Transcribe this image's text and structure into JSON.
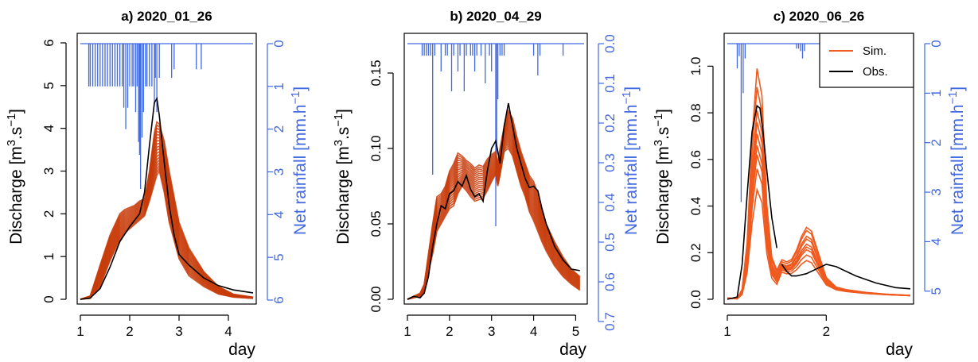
{
  "chart_data": [
    {
      "type": "line",
      "title": "a) 2020_01_26",
      "xlabel": "day",
      "ylabel": "Discharge [m³.s⁻¹]",
      "y2label": "Net rainfall [mm.h⁻¹]",
      "xlim": [
        1,
        4.5
      ],
      "ylim": [
        0,
        6
      ],
      "y2lim": [
        0,
        6
      ],
      "xticks": [
        1,
        2,
        3,
        4
      ],
      "yticks": [
        0,
        1,
        2,
        3,
        4,
        5,
        6
      ],
      "y2ticks": [
        0,
        1,
        2,
        3,
        4,
        5,
        6
      ],
      "sim_color": "#c83c0a",
      "obs": {
        "name": "Obs.",
        "x": [
          1.0,
          1.2,
          1.4,
          1.6,
          1.8,
          2.0,
          2.1,
          2.2,
          2.3,
          2.4,
          2.5,
          2.55,
          2.6,
          2.7,
          2.8,
          2.9,
          3.0,
          3.2,
          3.5,
          3.8,
          4.1,
          4.5
        ],
        "y": [
          0.0,
          0.03,
          0.25,
          0.75,
          1.35,
          1.7,
          1.85,
          2.0,
          2.5,
          3.6,
          4.6,
          4.7,
          4.3,
          3.2,
          2.2,
          1.5,
          1.05,
          0.8,
          0.5,
          0.32,
          0.22,
          0.15
        ]
      },
      "sim_envelope": {
        "x": [
          1.0,
          1.2,
          1.4,
          1.6,
          1.8,
          1.9,
          2.0,
          2.1,
          2.2,
          2.3,
          2.4,
          2.5,
          2.55,
          2.6,
          2.7,
          2.8,
          3.0,
          3.2,
          3.5,
          3.8,
          4.1,
          4.5
        ],
        "low": [
          0.0,
          0.02,
          0.3,
          0.9,
          1.4,
          1.55,
          1.65,
          1.75,
          1.85,
          1.95,
          2.3,
          2.7,
          2.9,
          3.0,
          2.5,
          1.8,
          0.95,
          0.55,
          0.3,
          0.12,
          0.05,
          0.02
        ],
        "high": [
          0.0,
          0.08,
          0.8,
          1.5,
          2.0,
          2.1,
          2.15,
          2.2,
          2.3,
          2.35,
          3.0,
          3.9,
          4.15,
          4.1,
          3.7,
          3.0,
          1.8,
          1.2,
          0.65,
          0.3,
          0.12,
          0.05
        ]
      },
      "rainfall": {
        "baseline_x": [
          1.0,
          4.5
        ],
        "x": [
          1.17,
          1.2,
          1.25,
          1.3,
          1.35,
          1.4,
          1.45,
          1.5,
          1.55,
          1.6,
          1.65,
          1.7,
          1.75,
          1.8,
          1.85,
          1.88,
          1.92,
          1.96,
          2.0,
          2.05,
          2.08,
          2.12,
          2.15,
          2.18,
          2.2,
          2.22,
          2.25,
          2.28,
          2.32,
          2.35,
          2.4,
          2.45,
          2.5,
          2.52,
          2.55,
          2.6,
          2.85,
          2.9,
          3.35,
          3.45
        ],
        "y": [
          1.0,
          1.0,
          1.0,
          1.0,
          1.0,
          1.0,
          1.0,
          1.0,
          1.0,
          1.0,
          1.0,
          1.0,
          1.0,
          1.0,
          1.0,
          1.5,
          2.0,
          1.5,
          1.0,
          1.0,
          1.0,
          1.6,
          1.0,
          2.3,
          2.6,
          3.4,
          2.2,
          1.6,
          1.0,
          1.0,
          1.0,
          1.0,
          1.4,
          0.8,
          1.6,
          0.8,
          0.8,
          0.6,
          0.6,
          0.6
        ]
      }
    },
    {
      "type": "line",
      "title": "b) 2020_04_29",
      "xlabel": "day",
      "ylabel": "Discharge [m³.s⁻¹]",
      "y2label": "Net rainfall [mm.h⁻¹]",
      "xlim": [
        1,
        5.2
      ],
      "ylim": [
        0,
        0.17
      ],
      "y2lim": [
        0,
        0.7
      ],
      "xticks": [
        1,
        2,
        3,
        4,
        5
      ],
      "yticks": [
        0.0,
        0.05,
        0.1,
        0.15
      ],
      "ytick_labels": [
        "0.00",
        "0.05",
        "0.10",
        "0.15"
      ],
      "y2ticks": [
        0.0,
        0.1,
        0.2,
        0.3,
        0.4,
        0.5,
        0.6,
        0.7
      ],
      "y2tick_labels": [
        "0.0",
        "0.1",
        "0.2",
        "0.3",
        "0.4",
        "0.5",
        "0.6",
        "0.7"
      ],
      "sim_color": "#c83c0a",
      "obs": {
        "name": "Obs.",
        "x": [
          1.0,
          1.15,
          1.3,
          1.4,
          1.5,
          1.6,
          1.7,
          1.8,
          1.9,
          2.0,
          2.1,
          2.2,
          2.3,
          2.4,
          2.5,
          2.6,
          2.7,
          2.8,
          2.9,
          3.0,
          3.1,
          3.15,
          3.2,
          3.3,
          3.4,
          3.5,
          3.6,
          3.7,
          3.8,
          3.9,
          4.0,
          4.1,
          4.2,
          4.3,
          4.5,
          4.7,
          4.9,
          5.1
        ],
        "y": [
          0.0,
          0.002,
          0.001,
          0.004,
          0.015,
          0.035,
          0.05,
          0.062,
          0.06,
          0.07,
          0.072,
          0.078,
          0.075,
          0.082,
          0.073,
          0.068,
          0.07,
          0.065,
          0.085,
          0.1,
          0.105,
          0.098,
          0.09,
          0.115,
          0.13,
          0.115,
          0.1,
          0.09,
          0.08,
          0.074,
          0.075,
          0.072,
          0.06,
          0.05,
          0.035,
          0.026,
          0.02,
          0.019
        ]
      },
      "sim_envelope": {
        "x": [
          1.0,
          1.15,
          1.3,
          1.4,
          1.5,
          1.6,
          1.7,
          1.8,
          1.9,
          2.0,
          2.1,
          2.2,
          2.3,
          2.4,
          2.5,
          2.6,
          2.7,
          2.8,
          2.9,
          3.0,
          3.1,
          3.15,
          3.2,
          3.3,
          3.4,
          3.5,
          3.6,
          3.7,
          3.8,
          3.9,
          4.0,
          4.1,
          4.2,
          4.3,
          4.5,
          4.7,
          4.9,
          5.1
        ],
        "low": [
          0.0,
          0.001,
          0.002,
          0.005,
          0.018,
          0.03,
          0.045,
          0.05,
          0.055,
          0.06,
          0.062,
          0.07,
          0.075,
          0.072,
          0.068,
          0.065,
          0.066,
          0.067,
          0.072,
          0.078,
          0.083,
          0.075,
          0.082,
          0.098,
          0.1,
          0.095,
          0.085,
          0.075,
          0.068,
          0.058,
          0.052,
          0.045,
          0.038,
          0.032,
          0.022,
          0.015,
          0.01,
          0.006
        ],
        "high": [
          0.0,
          0.002,
          0.004,
          0.01,
          0.03,
          0.05,
          0.068,
          0.07,
          0.075,
          0.085,
          0.09,
          0.097,
          0.095,
          0.092,
          0.09,
          0.087,
          0.089,
          0.088,
          0.093,
          0.096,
          0.098,
          0.09,
          0.1,
          0.115,
          0.125,
          0.12,
          0.108,
          0.098,
          0.09,
          0.082,
          0.078,
          0.07,
          0.06,
          0.05,
          0.038,
          0.028,
          0.02,
          0.015
        ]
      },
      "rainfall": {
        "baseline_x": [
          1.0,
          5.2
        ],
        "x": [
          1.35,
          1.4,
          1.45,
          1.5,
          1.55,
          1.6,
          1.65,
          1.8,
          1.9,
          1.95,
          2.05,
          2.1,
          2.2,
          2.25,
          2.35,
          2.4,
          2.5,
          2.55,
          2.6,
          2.65,
          2.75,
          2.85,
          2.95,
          3.0,
          3.1,
          3.12,
          3.15,
          3.2,
          3.25,
          3.3,
          4.0,
          4.1,
          4.15,
          4.7
        ],
        "y": [
          0.03,
          0.03,
          0.03,
          0.03,
          0.03,
          0.33,
          0.03,
          0.07,
          0.03,
          0.03,
          0.12,
          0.03,
          0.07,
          0.03,
          0.12,
          0.03,
          0.03,
          0.03,
          0.07,
          0.03,
          0.03,
          0.1,
          0.03,
          0.07,
          0.46,
          0.28,
          0.14,
          0.03,
          0.03,
          0.03,
          0.03,
          0.08,
          0.03,
          0.03
        ]
      }
    },
    {
      "type": "line",
      "title": "c) 2020_06_26",
      "xlabel": "day",
      "ylabel": "Discharge [m³.s⁻¹]",
      "y2label": "Net rainfall [mm.h⁻¹]",
      "xlim": [
        1,
        2.85
      ],
      "ylim": [
        0,
        1.1
      ],
      "y2lim": [
        0,
        5.1
      ],
      "xticks": [
        1,
        2
      ],
      "yticks": [
        0.0,
        0.2,
        0.4,
        0.6,
        0.8,
        1.0
      ],
      "ytick_labels": [
        "0.0",
        "0.2",
        "0.4",
        "0.6",
        "0.8",
        "1.0"
      ],
      "y2ticks": [
        0,
        1,
        2,
        3,
        4,
        5
      ],
      "sim_color": "#f05a1e",
      "legend": [
        "Sim.",
        "Obs."
      ],
      "obs": {
        "name": "Obs.",
        "x": [
          1.0,
          1.1,
          1.15,
          1.2,
          1.25,
          1.3,
          1.33,
          1.36,
          1.4,
          1.45,
          1.5
        ],
        "y": [
          0.0,
          0.01,
          0.15,
          0.45,
          0.72,
          0.83,
          0.82,
          0.72,
          0.55,
          0.35,
          0.22
        ],
        "x2": [
          1.55,
          1.6,
          1.65,
          1.7,
          1.8,
          1.9,
          2.0,
          2.1,
          2.3,
          2.5,
          2.7,
          2.85
        ],
        "y2": [
          0.15,
          0.12,
          0.1,
          0.1,
          0.11,
          0.13,
          0.15,
          0.14,
          0.1,
          0.07,
          0.05,
          0.045
        ]
      },
      "sim_curves": {
        "x": [
          1.0,
          1.1,
          1.15,
          1.2,
          1.25,
          1.3,
          1.35,
          1.4,
          1.45,
          1.5,
          1.55,
          1.6,
          1.65,
          1.7,
          1.75,
          1.8,
          1.85,
          1.9,
          2.0,
          2.1,
          2.2,
          2.4,
          2.6,
          2.85
        ],
        "peaks": [
          0.46,
          0.55,
          0.61,
          0.65,
          0.7,
          0.75,
          0.8,
          0.9,
          0.98
        ],
        "bumps": [
          0.1,
          0.12,
          0.14,
          0.15,
          0.16,
          0.18,
          0.19,
          0.21,
          0.22
        ]
      },
      "rainfall": {
        "baseline_x": [
          1.0,
          2.85
        ],
        "x": [
          1.1,
          1.12,
          1.14,
          1.16,
          1.18,
          1.7,
          1.72,
          1.74,
          1.76,
          1.78
        ],
        "y": [
          0.5,
          0.25,
          3.2,
          1.0,
          0.3,
          0.1,
          0.1,
          0.15,
          0.3,
          0.15
        ]
      }
    }
  ]
}
